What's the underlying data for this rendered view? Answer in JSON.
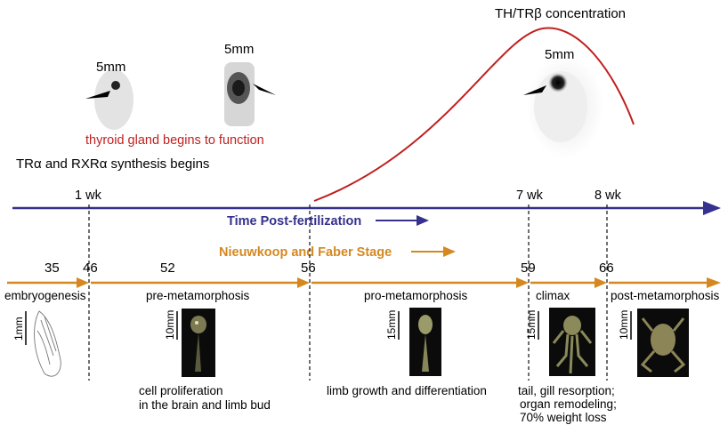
{
  "colors": {
    "time_axis": "#35318d",
    "stage_axis": "#d4881f",
    "curve": "#c0201e",
    "text": "#111111",
    "thyroid_text": "#c0201e"
  },
  "top": {
    "th_concentration_label": "TH/TRβ concentration",
    "thyroid_function_label": "thyroid gland begins to function",
    "receptor_synthesis_label": "TRα and RXRα synthesis begins",
    "scale_labels": [
      "5mm",
      "5mm",
      "5mm"
    ]
  },
  "time_axis": {
    "title": "Time Post-fertilization",
    "ticks": [
      "1 wk",
      "7 wk",
      "8 wk"
    ]
  },
  "stage_axis": {
    "title": "Nieuwkoop and Faber Stage",
    "stages": [
      "35",
      "46",
      "52",
      "56",
      "59",
      "66"
    ]
  },
  "phases": [
    {
      "label": "embryogenesis",
      "scale": "1mm"
    },
    {
      "label": "pre-metamorphosis",
      "scale": "10mm"
    },
    {
      "label": "pro-metamorphosis",
      "scale": "15mm"
    },
    {
      "label": "climax",
      "scale": "15mm"
    },
    {
      "label": "post-metamorphosis",
      "scale": "10mm"
    }
  ],
  "notes": {
    "pre_line1": "cell proliferation",
    "pre_line2": "in the brain and limb bud",
    "pro_line1": "limb growth and differentiation",
    "climax_line1": "tail, gill resorption;",
    "climax_line2": "organ remodeling;",
    "climax_line3": "70% weight loss"
  }
}
